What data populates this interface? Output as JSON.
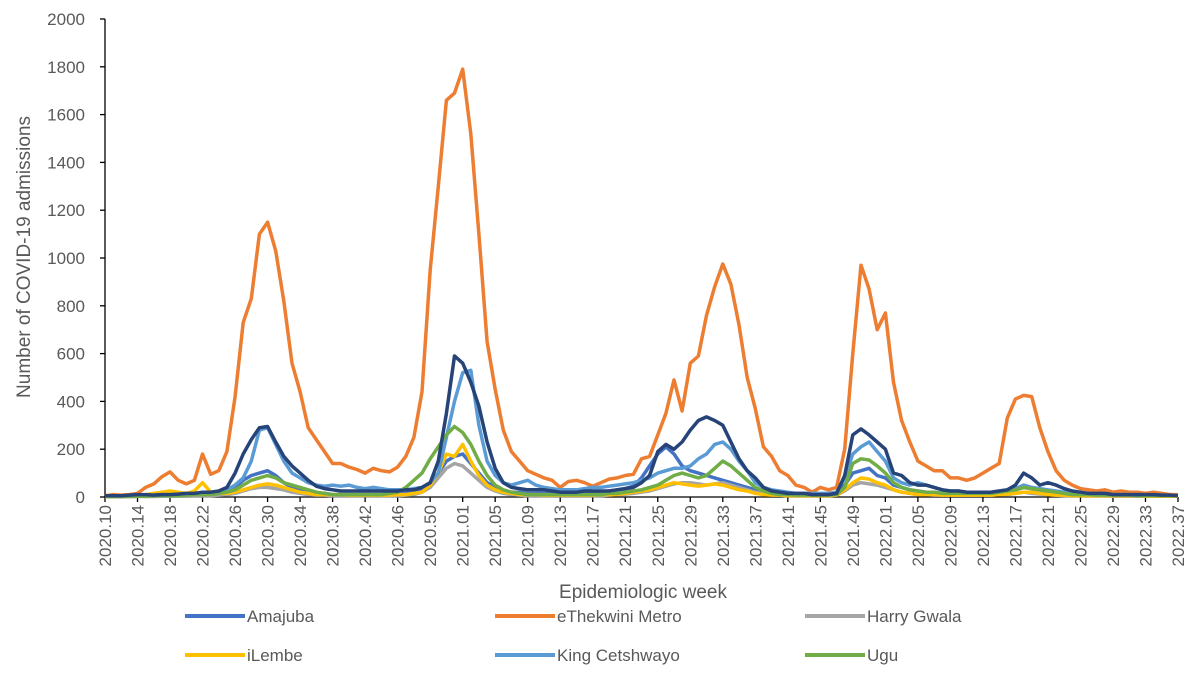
{
  "chart_data": {
    "type": "line",
    "y_label": "Number of COVID-19 admissions",
    "x_label": "Epidemiologic week",
    "ylim": [
      0,
      2000
    ],
    "yticks": [
      0,
      200,
      400,
      600,
      800,
      1000,
      1200,
      1400,
      1600,
      1800,
      2000
    ],
    "categories": [
      "2020.10",
      null,
      null,
      null,
      "2020.14",
      null,
      null,
      null,
      "2020.18",
      null,
      null,
      null,
      "2020.22",
      null,
      null,
      null,
      "2020.26",
      null,
      null,
      null,
      "2020.30",
      null,
      null,
      null,
      "2020.34",
      null,
      null,
      null,
      "2020.38",
      null,
      null,
      null,
      "2020.42",
      null,
      null,
      null,
      "2020.46",
      null,
      null,
      null,
      "2020.50",
      null,
      null,
      null,
      "2021.01",
      null,
      null,
      null,
      "2021.05",
      null,
      null,
      null,
      "2021.09",
      null,
      null,
      null,
      "2021.13",
      null,
      null,
      null,
      "2021.17",
      null,
      null,
      null,
      "2021.21",
      null,
      null,
      null,
      "2021.25",
      null,
      null,
      null,
      "2021.29",
      null,
      null,
      null,
      "2021.33",
      null,
      null,
      null,
      "2021.37",
      null,
      null,
      null,
      "2021.41",
      null,
      null,
      null,
      "2021.45",
      null,
      null,
      null,
      "2021.49",
      null,
      null,
      null,
      "2022.01",
      null,
      null,
      null,
      "2022.05",
      null,
      null,
      null,
      "2022.09",
      null,
      null,
      null,
      "2022.13",
      null,
      null,
      null,
      "2022.17",
      null,
      null,
      null,
      "2022.21",
      null,
      null,
      null,
      "2022.25",
      null,
      null,
      null,
      "2022.29",
      null,
      null,
      null,
      "2022.33",
      null,
      null,
      null,
      "2022.37"
    ],
    "series": [
      {
        "name": "Amajuba",
        "color": "#4472c4",
        "values": [
          2,
          2,
          3,
          3,
          3,
          5,
          5,
          5,
          5,
          5,
          5,
          8,
          10,
          10,
          15,
          20,
          40,
          70,
          90,
          100,
          110,
          90,
          60,
          40,
          30,
          20,
          15,
          15,
          10,
          10,
          10,
          10,
          10,
          10,
          10,
          10,
          10,
          15,
          20,
          30,
          50,
          100,
          150,
          170,
          180,
          140,
          100,
          60,
          40,
          25,
          20,
          20,
          15,
          15,
          15,
          15,
          15,
          15,
          15,
          15,
          20,
          20,
          25,
          30,
          35,
          45,
          80,
          130,
          180,
          210,
          180,
          130,
          110,
          100,
          90,
          80,
          70,
          60,
          50,
          40,
          30,
          20,
          15,
          10,
          10,
          10,
          10,
          10,
          10,
          10,
          15,
          50,
          100,
          110,
          120,
          90,
          80,
          50,
          40,
          30,
          25,
          20,
          20,
          15,
          15,
          15,
          15,
          15,
          15,
          15,
          20,
          25,
          30,
          40,
          35,
          25,
          20,
          15,
          10,
          10,
          10,
          10,
          10,
          10,
          8,
          8,
          8,
          8,
          5,
          5,
          5,
          5,
          5
        ]
      },
      {
        "name": "eThekwini Metro",
        "color": "#ed7d31",
        "values": [
          5,
          10,
          8,
          10,
          15,
          40,
          55,
          85,
          105,
          70,
          55,
          70,
          180,
          95,
          110,
          190,
          420,
          730,
          830,
          1100,
          1150,
          1030,
          820,
          560,
          440,
          290,
          240,
          190,
          140,
          140,
          125,
          115,
          100,
          120,
          110,
          105,
          125,
          170,
          250,
          440,
          950,
          1300,
          1660,
          1690,
          1790,
          1520,
          1100,
          650,
          450,
          280,
          190,
          150,
          110,
          95,
          80,
          70,
          40,
          65,
          70,
          60,
          45,
          60,
          75,
          80,
          90,
          95,
          160,
          170,
          260,
          350,
          490,
          360,
          560,
          590,
          760,
          880,
          975,
          890,
          720,
          500,
          370,
          210,
          170,
          110,
          90,
          50,
          40,
          20,
          40,
          30,
          40,
          200,
          600,
          970,
          870,
          700,
          770,
          480,
          320,
          230,
          150,
          130,
          110,
          110,
          80,
          80,
          70,
          80,
          100,
          120,
          140,
          330,
          410,
          425,
          420,
          290,
          190,
          110,
          70,
          50,
          35,
          30,
          25,
          30,
          20,
          25,
          20,
          20,
          15,
          20,
          15,
          10,
          10
        ]
      },
      {
        "name": "Harry Gwala",
        "color": "#a5a5a5",
        "values": [
          1,
          1,
          1,
          1,
          2,
          2,
          2,
          3,
          3,
          3,
          3,
          5,
          5,
          5,
          8,
          10,
          15,
          25,
          35,
          40,
          40,
          35,
          30,
          20,
          15,
          10,
          8,
          8,
          5,
          5,
          5,
          5,
          5,
          5,
          5,
          5,
          5,
          8,
          10,
          20,
          40,
          80,
          120,
          140,
          130,
          100,
          70,
          40,
          25,
          15,
          10,
          8,
          5,
          5,
          5,
          5,
          5,
          5,
          5,
          5,
          5,
          5,
          8,
          10,
          12,
          15,
          20,
          25,
          35,
          45,
          55,
          60,
          60,
          55,
          50,
          55,
          60,
          50,
          40,
          30,
          20,
          15,
          10,
          8,
          5,
          5,
          5,
          5,
          5,
          5,
          8,
          25,
          50,
          60,
          55,
          50,
          40,
          30,
          20,
          15,
          10,
          10,
          8,
          8,
          8,
          8,
          8,
          8,
          8,
          8,
          10,
          10,
          15,
          20,
          15,
          12,
          10,
          8,
          5,
          5,
          5,
          5,
          5,
          5,
          3,
          3,
          3,
          3,
          3,
          3,
          3,
          3,
          3
        ]
      },
      {
        "name": "iLembe",
        "color": "#ffc000",
        "values": [
          2,
          2,
          3,
          3,
          5,
          10,
          15,
          20,
          25,
          20,
          15,
          25,
          60,
          20,
          15,
          15,
          20,
          30,
          40,
          50,
          55,
          50,
          40,
          30,
          20,
          15,
          10,
          10,
          10,
          10,
          8,
          8,
          8,
          8,
          8,
          8,
          10,
          10,
          15,
          20,
          50,
          100,
          180,
          170,
          220,
          150,
          90,
          50,
          30,
          20,
          15,
          10,
          10,
          10,
          8,
          8,
          8,
          8,
          8,
          8,
          8,
          10,
          10,
          10,
          15,
          20,
          25,
          30,
          40,
          50,
          60,
          55,
          50,
          45,
          50,
          55,
          50,
          40,
          30,
          25,
          15,
          10,
          8,
          8,
          5,
          5,
          5,
          5,
          5,
          5,
          8,
          30,
          60,
          80,
          75,
          60,
          50,
          30,
          20,
          15,
          10,
          10,
          10,
          8,
          8,
          8,
          8,
          8,
          8,
          8,
          10,
          12,
          15,
          20,
          20,
          15,
          10,
          8,
          8,
          5,
          5,
          5,
          5,
          5,
          5,
          5,
          5,
          5,
          3,
          3,
          3,
          3,
          3
        ]
      },
      {
        "name": "King Cetshwayo",
        "color": "#5b9bd5",
        "values": [
          5,
          5,
          5,
          5,
          5,
          5,
          8,
          10,
          10,
          10,
          10,
          10,
          15,
          15,
          20,
          30,
          50,
          80,
          150,
          280,
          290,
          220,
          150,
          100,
          80,
          60,
          50,
          45,
          50,
          45,
          50,
          40,
          35,
          40,
          35,
          30,
          30,
          30,
          35,
          40,
          60,
          100,
          250,
          400,
          520,
          530,
          300,
          150,
          90,
          60,
          50,
          60,
          70,
          50,
          40,
          35,
          30,
          30,
          30,
          35,
          40,
          40,
          45,
          50,
          55,
          60,
          70,
          80,
          100,
          110,
          120,
          120,
          130,
          160,
          180,
          220,
          230,
          200,
          150,
          110,
          60,
          40,
          30,
          25,
          20,
          15,
          15,
          15,
          15,
          15,
          20,
          80,
          180,
          210,
          230,
          190,
          150,
          80,
          60,
          50,
          60,
          50,
          40,
          30,
          25,
          25,
          20,
          20,
          20,
          20,
          25,
          30,
          35,
          50,
          40,
          35,
          30,
          25,
          20,
          15,
          15,
          15,
          10,
          10,
          10,
          10,
          10,
          10,
          8,
          8,
          8,
          5,
          5
        ]
      },
      {
        "name": "Ugu",
        "color": "#70ad47",
        "values": [
          2,
          2,
          2,
          3,
          3,
          3,
          5,
          5,
          5,
          5,
          8,
          10,
          10,
          10,
          15,
          20,
          30,
          50,
          70,
          80,
          90,
          80,
          60,
          50,
          40,
          30,
          20,
          15,
          10,
          10,
          10,
          10,
          10,
          10,
          10,
          15,
          20,
          40,
          70,
          100,
          160,
          210,
          260,
          295,
          270,
          220,
          150,
          90,
          50,
          30,
          20,
          15,
          10,
          10,
          10,
          10,
          10,
          10,
          10,
          10,
          10,
          10,
          15,
          15,
          20,
          25,
          30,
          40,
          50,
          70,
          90,
          100,
          90,
          80,
          90,
          120,
          150,
          130,
          100,
          70,
          40,
          25,
          15,
          10,
          10,
          8,
          8,
          8,
          8,
          8,
          10,
          40,
          140,
          160,
          155,
          130,
          100,
          60,
          40,
          30,
          25,
          20,
          20,
          15,
          15,
          15,
          15,
          15,
          15,
          15,
          20,
          25,
          30,
          40,
          35,
          30,
          25,
          20,
          15,
          10,
          10,
          10,
          8,
          8,
          8,
          8,
          8,
          5,
          5,
          5,
          5,
          5,
          5
        ]
      },
      {
        "color": "#264478",
        "values": [
          5,
          5,
          5,
          8,
          10,
          10,
          8,
          10,
          10,
          12,
          15,
          15,
          20,
          20,
          25,
          40,
          100,
          180,
          240,
          290,
          295,
          230,
          170,
          130,
          100,
          70,
          45,
          35,
          30,
          25,
          25,
          25,
          25,
          25,
          25,
          25,
          25,
          30,
          30,
          40,
          60,
          150,
          350,
          590,
          560,
          480,
          380,
          230,
          120,
          60,
          40,
          35,
          30,
          30,
          30,
          25,
          20,
          20,
          20,
          25,
          25,
          25,
          25,
          30,
          35,
          40,
          60,
          90,
          190,
          220,
          200,
          230,
          280,
          320,
          335,
          320,
          300,
          230,
          160,
          110,
          80,
          40,
          25,
          20,
          15,
          15,
          15,
          10,
          10,
          10,
          15,
          90,
          260,
          285,
          260,
          230,
          200,
          100,
          90,
          60,
          50,
          50,
          40,
          30,
          25,
          25,
          20,
          20,
          20,
          20,
          25,
          30,
          50,
          100,
          80,
          50,
          60,
          50,
          35,
          25,
          20,
          15,
          15,
          15,
          10,
          10,
          10,
          10,
          10,
          10,
          8,
          8,
          5
        ]
      }
    ]
  }
}
